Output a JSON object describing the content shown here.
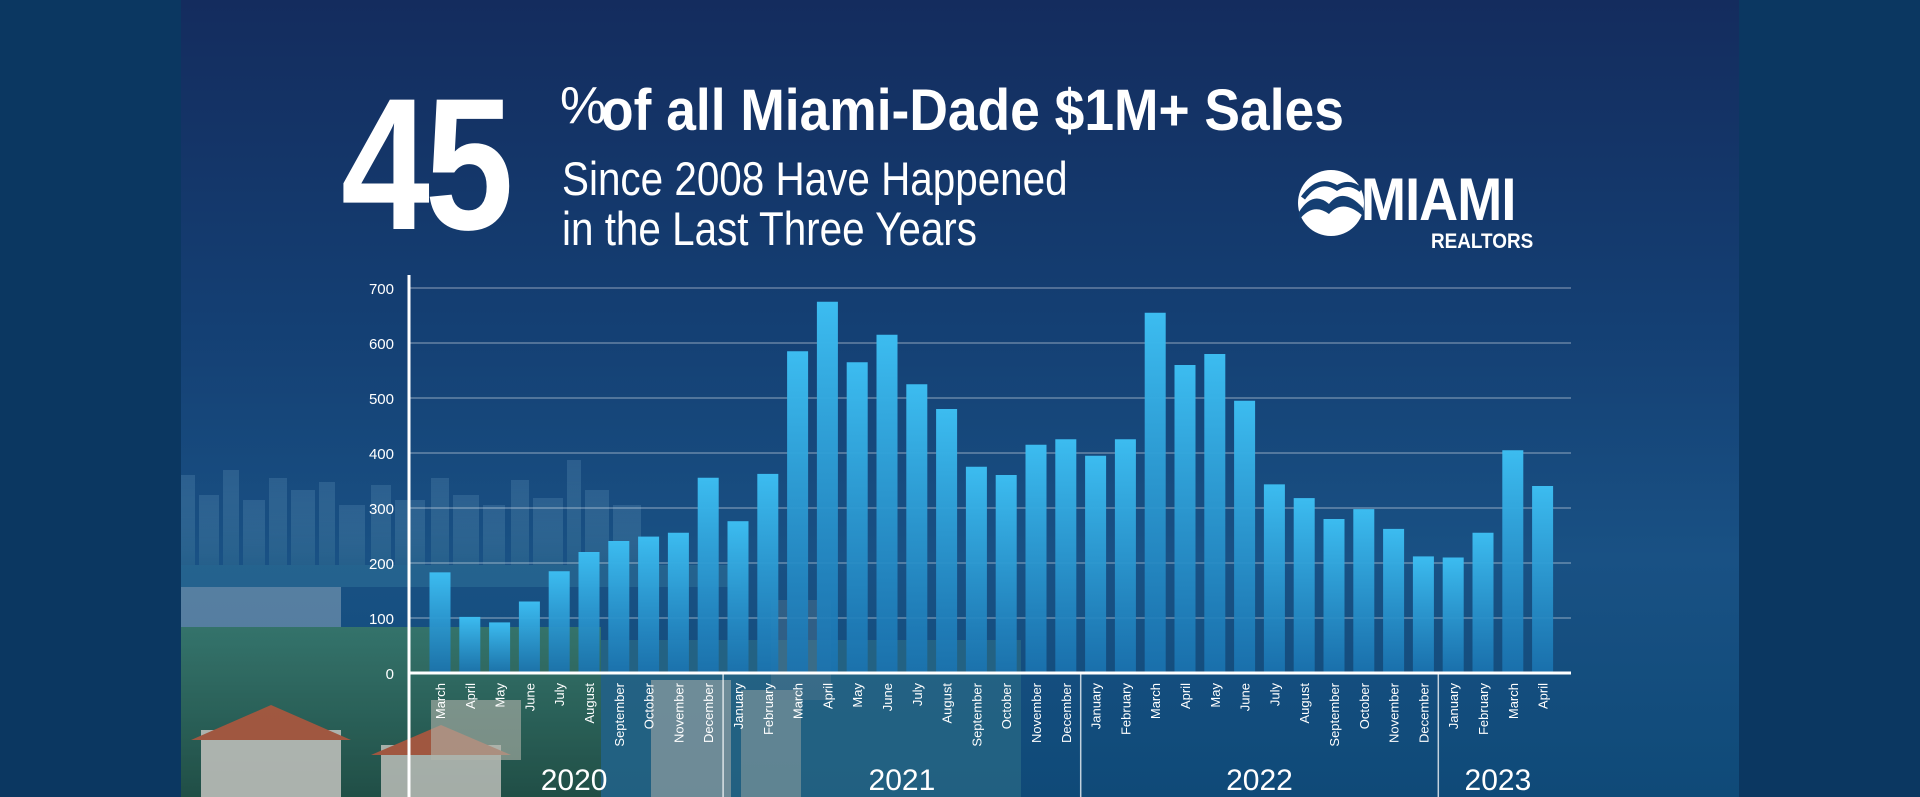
{
  "headline": {
    "number": "45",
    "percent_sign": "%",
    "line1": "of all Miami-Dade $1M+ Sales",
    "line2": "Since 2008 Have Happened",
    "line3": "in the Last Three Years"
  },
  "logo": {
    "name": "MIAMI",
    "sub": "REALTORS",
    "icon": "miami-realtors-logo-icon"
  },
  "colors": {
    "background": "#0b3761",
    "bar_top": "#38b4ec",
    "bar_bottom": "#1b77b4",
    "text": "#ffffff"
  },
  "chart_data": {
    "type": "bar",
    "title": "",
    "xlabel": "",
    "ylabel": "",
    "ylim": [
      0,
      700
    ],
    "yticks": [
      0,
      100,
      200,
      300,
      400,
      500,
      600,
      700
    ],
    "grid": true,
    "categories": [
      "March",
      "April",
      "May",
      "June",
      "July",
      "August",
      "September",
      "October",
      "November",
      "December",
      "January",
      "February",
      "March",
      "April",
      "May",
      "June",
      "July",
      "August",
      "September",
      "October",
      "November",
      "December",
      "January",
      "February",
      "March",
      "April",
      "May",
      "June",
      "July",
      "August",
      "September",
      "October",
      "November",
      "December",
      "January",
      "February",
      "March",
      "April"
    ],
    "values": [
      183,
      102,
      92,
      130,
      185,
      220,
      240,
      248,
      255,
      355,
      276,
      362,
      585,
      675,
      565,
      615,
      525,
      480,
      375,
      360,
      415,
      425,
      395,
      425,
      655,
      560,
      580,
      495,
      343,
      318,
      280,
      298,
      262,
      212,
      210,
      255,
      405,
      340
    ],
    "year_groups": [
      {
        "label": "2020",
        "start": 0,
        "end": 9
      },
      {
        "label": "2021",
        "start": 10,
        "end": 21
      },
      {
        "label": "2022",
        "start": 22,
        "end": 33
      },
      {
        "label": "2023",
        "start": 34,
        "end": 37
      }
    ]
  }
}
